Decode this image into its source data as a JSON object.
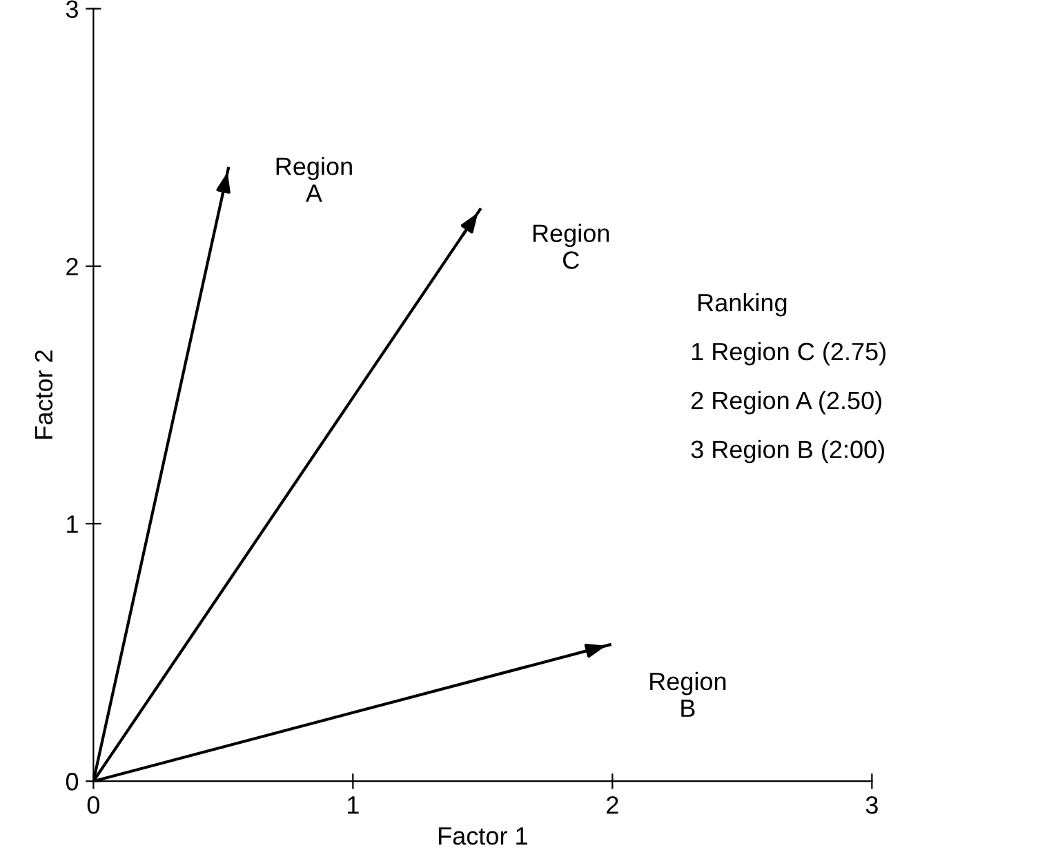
{
  "chart_data": {
    "type": "line",
    "xlabel": "Factor 1",
    "ylabel": "Factor 2",
    "series": [
      {
        "name": "Region A",
        "color": "#000000",
        "x": [
          0,
          0.52
        ],
        "values": [
          0,
          2.38
        ]
      },
      {
        "name": "Region C",
        "color": "#000000",
        "x": [
          0,
          1.49
        ],
        "values": [
          0,
          2.22
        ]
      },
      {
        "name": "Region B",
        "color": "#000000",
        "x": [
          0,
          1.99
        ],
        "values": [
          0,
          0.53
        ]
      }
    ],
    "xlim": [
      0,
      3
    ],
    "ylim": [
      0,
      3
    ],
    "xticks": [
      0,
      1,
      2,
      3
    ],
    "yticks": [
      0,
      1,
      2,
      3
    ],
    "grid": false,
    "legend": "top",
    "line_style": "solid",
    "annotations": [
      "Ranking",
      "1 Region C (2.75)",
      "2 Region A (2.50)",
      "3 Region B (2:00)"
    ]
  }
}
